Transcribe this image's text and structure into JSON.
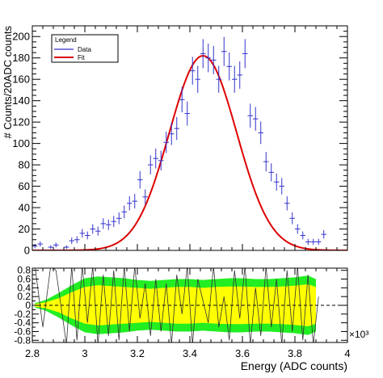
{
  "chart_data": [
    {
      "type": "scatter",
      "title": "",
      "xlabel": "Energy (ADC counts)",
      "ylabel": "# Counts/20ADC counts",
      "x_multiplier_label": "×10³",
      "xlim": [
        2800,
        4000
      ],
      "ylim": [
        0,
        210
      ],
      "x_ticks": [
        2.8,
        3,
        3.2,
        3.4,
        3.6,
        3.8,
        4
      ],
      "x_tick_labels": [
        "2.8",
        "3",
        "3.2",
        "3.4",
        "3.6",
        "3.8",
        "4"
      ],
      "y_ticks": [
        0,
        20,
        40,
        60,
        80,
        100,
        120,
        140,
        160,
        180,
        200
      ],
      "y_tick_labels": [
        "0",
        "20",
        "40",
        "60",
        "80",
        "100",
        "120",
        "140",
        "160",
        "180",
        "200"
      ],
      "grid": false,
      "legend": {
        "title": "Legend",
        "placement": "top-left",
        "entries": [
          {
            "label": "Data",
            "color": "#3333cc",
            "style": "line"
          },
          {
            "label": "Fit",
            "color": "#dd0000",
            "style": "line"
          }
        ]
      },
      "series": [
        {
          "name": "Data",
          "kind": "points_with_errors",
          "color": "#3333cc",
          "x_halfwidth": 10,
          "points": [
            [
              2810,
              4,
              2
            ],
            [
              2830,
              6,
              2.4
            ],
            [
              2870,
              3,
              1.7
            ],
            [
              2890,
              5,
              2.2
            ],
            [
              2930,
              3,
              1.7
            ],
            [
              2950,
              9,
              3
            ],
            [
              2970,
              10,
              3.2
            ],
            [
              2990,
              16,
              4
            ],
            [
              3010,
              14,
              3.7
            ],
            [
              3030,
              20,
              4.5
            ],
            [
              3050,
              18,
              4.2
            ],
            [
              3070,
              25,
              5
            ],
            [
              3090,
              24,
              4.9
            ],
            [
              3110,
              27,
              5.2
            ],
            [
              3130,
              30,
              5.5
            ],
            [
              3150,
              36,
              6
            ],
            [
              3170,
              44,
              6.6
            ],
            [
              3190,
              46,
              6.8
            ],
            [
              3210,
              66,
              8.1
            ],
            [
              3230,
              50,
              7.1
            ],
            [
              3250,
              80,
              8.9
            ],
            [
              3270,
              86,
              9.3
            ],
            [
              3290,
              84,
              9.2
            ],
            [
              3310,
              101,
              10
            ],
            [
              3330,
              109,
              10.4
            ],
            [
              3350,
              114,
              10.7
            ],
            [
              3370,
              141,
              11.9
            ],
            [
              3390,
              128,
              11.3
            ],
            [
              3410,
              168,
              13
            ],
            [
              3430,
              160,
              12.6
            ],
            [
              3450,
              184,
              13.6
            ],
            [
              3470,
              180,
              13.4
            ],
            [
              3490,
              178,
              13.3
            ],
            [
              3510,
              160,
              12.6
            ],
            [
              3530,
              186,
              13.6
            ],
            [
              3550,
              172,
              13.1
            ],
            [
              3570,
              160,
              12.6
            ],
            [
              3590,
              164,
              12.8
            ],
            [
              3610,
              184,
              13.6
            ],
            [
              3630,
              126,
              11.2
            ],
            [
              3650,
              123,
              11.1
            ],
            [
              3670,
              110,
              10.5
            ],
            [
              3690,
              83,
              9.1
            ],
            [
              3710,
              73,
              8.5
            ],
            [
              3730,
              64,
              8
            ],
            [
              3750,
              60,
              7.7
            ],
            [
              3770,
              44,
              6.6
            ],
            [
              3790,
              30,
              5.5
            ],
            [
              3810,
              20,
              4.5
            ],
            [
              3830,
              14,
              3.7
            ],
            [
              3850,
              8,
              2.8
            ],
            [
              3870,
              8,
              2.8
            ],
            [
              3890,
              8,
              2.8
            ],
            [
              3910,
              15,
              3.9
            ]
          ]
        },
        {
          "name": "Fit",
          "kind": "gaussian_curve",
          "color": "#dd0000",
          "amplitude": 182,
          "mean": 3450,
          "sigma": 128
        }
      ]
    },
    {
      "type": "line",
      "title": "",
      "xlabel": "",
      "ylabel": "",
      "xlim": [
        2800,
        4000
      ],
      "ylim": [
        -0.85,
        0.85
      ],
      "x_ticks": [
        2.8,
        3,
        3.2,
        3.4,
        3.6,
        3.8,
        4
      ],
      "x_tick_labels": [
        "2.8",
        "3",
        "3.2",
        "3.4",
        "3.6",
        "3.8",
        "4"
      ],
      "y_ticks": [
        -0.8,
        -0.6,
        -0.4,
        -0.2,
        0,
        0.2,
        0.4,
        0.6,
        0.8
      ],
      "y_tick_labels": [
        "-0.8",
        "-0.6",
        "-0.4",
        "-0.2",
        "0",
        "0.2",
        "0.4",
        "0.6",
        "0.8"
      ],
      "reference_line": 0,
      "bands": {
        "x": [
          2810,
          2850,
          2900,
          2950,
          3000,
          3050,
          3100,
          3150,
          3200,
          3250,
          3300,
          3350,
          3400,
          3450,
          3500,
          3550,
          3600,
          3650,
          3700,
          3750,
          3800,
          3850,
          3880
        ],
        "outer_halfwidth": [
          0.05,
          0.12,
          0.28,
          0.46,
          0.62,
          0.66,
          0.64,
          0.62,
          0.58,
          0.56,
          0.58,
          0.6,
          0.6,
          0.58,
          0.6,
          0.62,
          0.62,
          0.6,
          0.6,
          0.62,
          0.64,
          0.68,
          0.6
        ],
        "inner_halfwidth": [
          0.03,
          0.07,
          0.16,
          0.3,
          0.42,
          0.46,
          0.44,
          0.42,
          0.4,
          0.38,
          0.4,
          0.42,
          0.42,
          0.4,
          0.42,
          0.43,
          0.43,
          0.42,
          0.42,
          0.43,
          0.45,
          0.48,
          0.42
        ],
        "outer_color": "#22ee22",
        "inner_color": "#ffff00"
      },
      "residuals": {
        "x": [
          2810,
          2840,
          2870,
          2890,
          2930,
          2950,
          2970,
          2990,
          3010,
          3030,
          3050,
          3070,
          3090,
          3110,
          3130,
          3150,
          3170,
          3190,
          3210,
          3230,
          3250,
          3270,
          3290,
          3310,
          3330,
          3350,
          3370,
          3390,
          3410,
          3430,
          3450,
          3470,
          3490,
          3510,
          3530,
          3550,
          3570,
          3590,
          3610,
          3630,
          3650,
          3670,
          3690,
          3710,
          3730,
          3750,
          3770,
          3790,
          3810,
          3830,
          3850,
          3870,
          3890
        ],
        "y": [
          0.9,
          -0.5,
          0.9,
          0.8,
          -0.9,
          0.9,
          -0.8,
          0.9,
          -0.4,
          0.9,
          -0.9,
          0.7,
          -0.7,
          0.8,
          -0.8,
          0.9,
          -0.6,
          0.9,
          -0.3,
          0.5,
          -0.7,
          0.6,
          -0.6,
          0.5,
          -0.9,
          0.7,
          -0.2,
          0.9,
          -0.9,
          0.6,
          0.1,
          -0.4,
          0.9,
          -0.5,
          0.2,
          -0.8,
          0.8,
          -0.3,
          0.9,
          -0.9,
          0.4,
          -0.7,
          0.9,
          -0.5,
          0.6,
          -0.9,
          0.8,
          -0.6,
          0.9,
          -0.8,
          0.7,
          -0.9,
          0.2
        ]
      }
    }
  ]
}
